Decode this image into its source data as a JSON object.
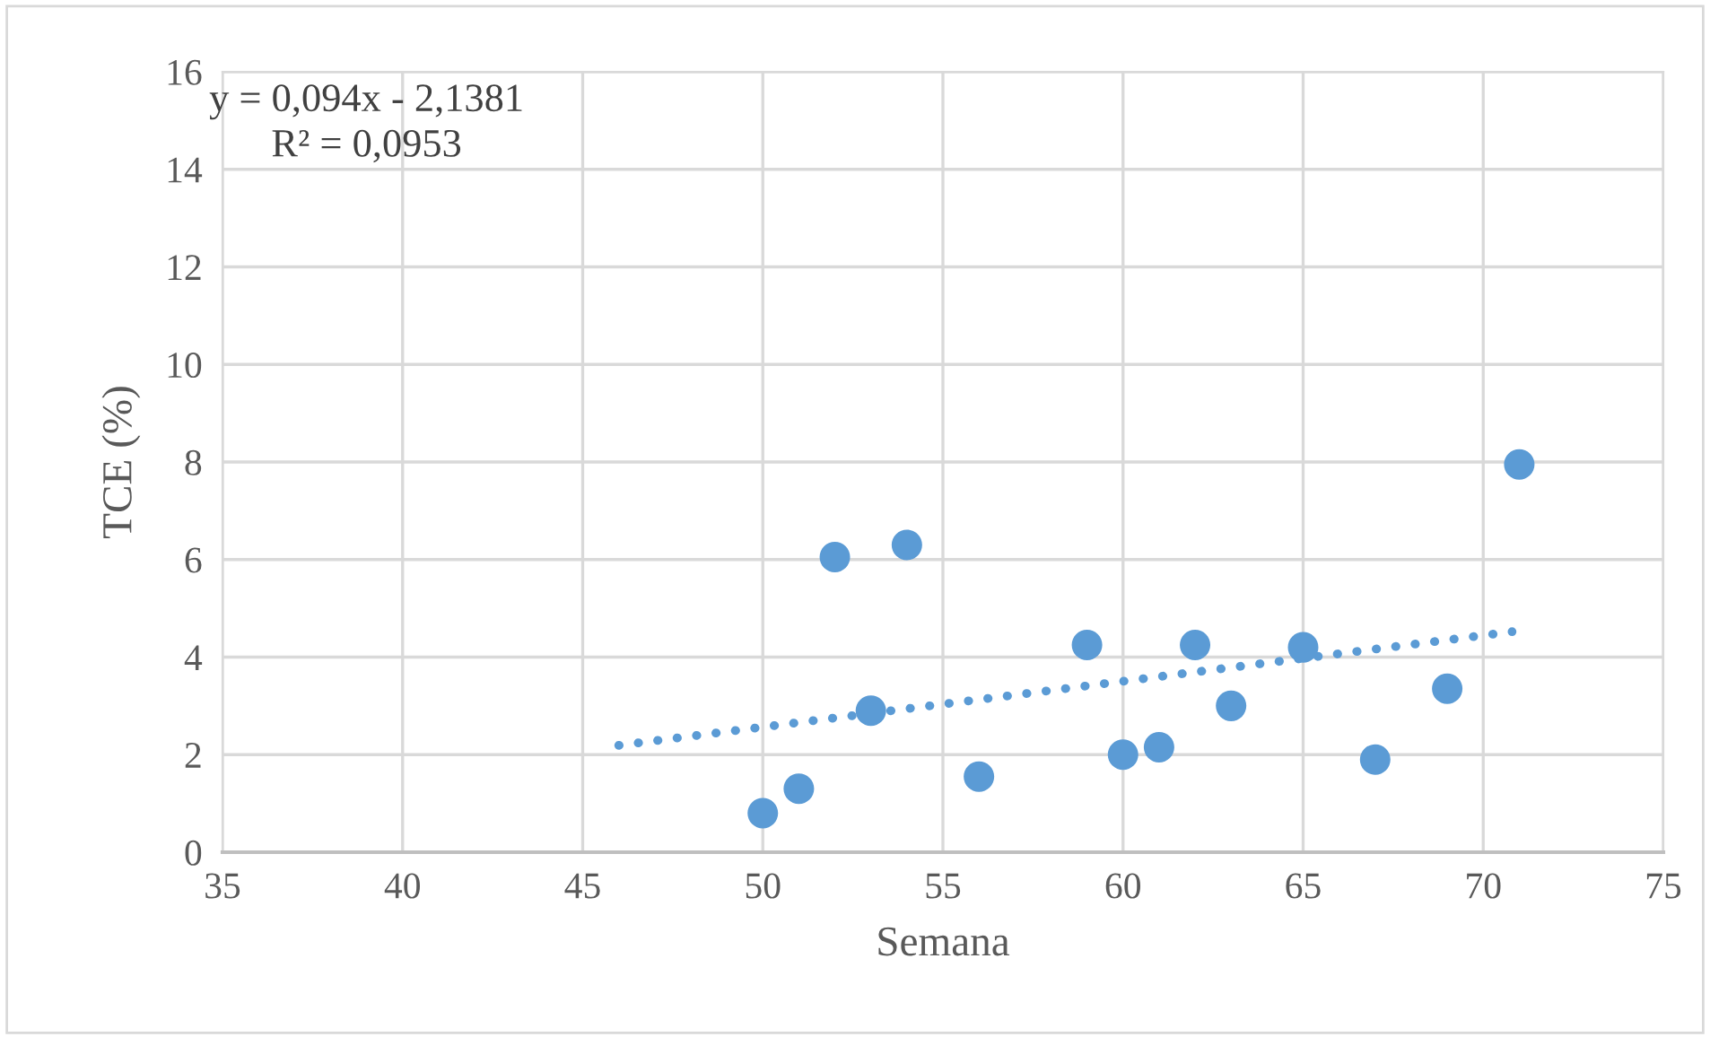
{
  "chart_data": {
    "type": "scatter",
    "xlabel": "Semana",
    "ylabel": "TCE (%)",
    "annotations": [
      "y = 0,094x - 2,1381",
      "R² = 0,0953"
    ],
    "xlim": [
      35,
      75
    ],
    "xticks": [
      35,
      40,
      45,
      50,
      55,
      60,
      65,
      70,
      75
    ],
    "ylim": [
      0,
      16
    ],
    "yticks": [
      0,
      2,
      4,
      6,
      8,
      10,
      12,
      14,
      16
    ],
    "grid": true,
    "marker": "circle",
    "series": [
      {
        "color": "#5b9bd5",
        "x": [
          50,
          51,
          52,
          53,
          54,
          56,
          59,
          60,
          61,
          62,
          63,
          65,
          67,
          69,
          71
        ],
        "values": [
          0.8,
          1.3,
          6.05,
          2.9,
          6.3,
          1.55,
          4.25,
          2.0,
          2.15,
          4.25,
          3.0,
          4.2,
          1.9,
          3.35,
          7.95
        ]
      },
      {
        "type": "line",
        "color": "#5b9bd5",
        "line_style": "dotted",
        "marker": "none",
        "x": [
          46,
          70.8
        ],
        "values": [
          2.19,
          4.52
        ]
      }
    ]
  }
}
